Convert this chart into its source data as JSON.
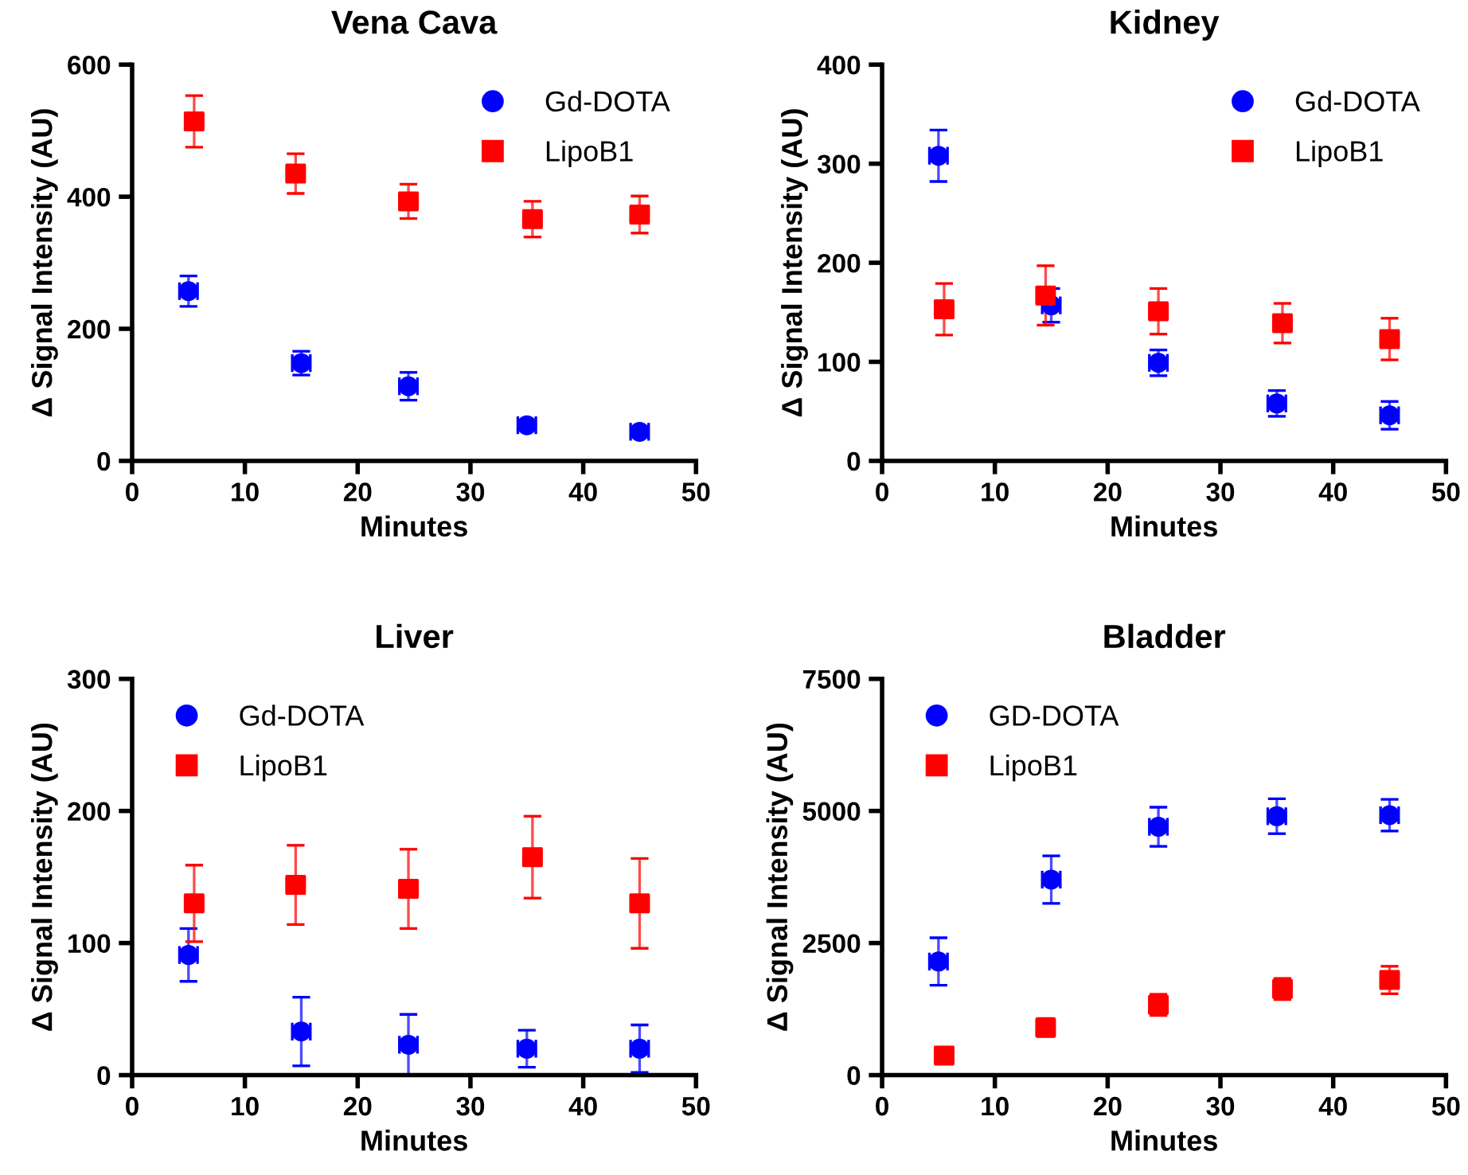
{
  "chart_data": [
    {
      "type": "scatter",
      "title": "Vena Cava",
      "xlabel": "Minutes",
      "ylabel": "Δ Signal Intensity (AU)",
      "xlim": [
        0,
        50
      ],
      "xticks": [
        0,
        10,
        20,
        30,
        40,
        50
      ],
      "ylim": [
        0,
        600
      ],
      "yticks": [
        0,
        200,
        400,
        600
      ],
      "legend": "top right",
      "grid": false,
      "series": [
        {
          "name": "Gd-DOTA",
          "color": "#0000ff",
          "marker": "circle",
          "x": [
            5,
            15,
            24.5,
            35,
            45
          ],
          "values": [
            257,
            148,
            113,
            54,
            44
          ],
          "errors": [
            23,
            18,
            21,
            6,
            5
          ],
          "xerrors": [
            0.8,
            0.8,
            0.8,
            0.8,
            0.8
          ]
        },
        {
          "name": "LipoB1",
          "color": "#ff0000",
          "marker": "square",
          "x": [
            5.5,
            14.5,
            24.5,
            35.5,
            45
          ],
          "values": [
            514,
            435,
            393,
            366,
            373
          ],
          "errors": [
            39,
            30,
            26,
            27,
            28
          ],
          "xerrors": [
            0.8,
            0.8,
            0.8,
            0.8,
            0.8
          ]
        }
      ]
    },
    {
      "type": "scatter",
      "title": "Kidney",
      "xlabel": "Minutes",
      "ylabel": "Δ Signal Intensity (AU)",
      "xlim": [
        0,
        50
      ],
      "xticks": [
        0,
        10,
        20,
        30,
        40,
        50
      ],
      "ylim": [
        0,
        400
      ],
      "yticks": [
        0,
        100,
        200,
        300,
        400
      ],
      "legend": "top right",
      "grid": false,
      "series": [
        {
          "name": "Gd-DOTA",
          "color": "#0000ff",
          "marker": "circle",
          "x": [
            5,
            15,
            24.5,
            35,
            45
          ],
          "values": [
            308,
            157,
            99,
            58,
            46
          ],
          "errors": [
            26,
            17,
            13,
            13,
            14
          ],
          "xerrors": [
            0.8,
            0.8,
            0.8,
            0.8,
            0.8
          ]
        },
        {
          "name": "LipoB1",
          "color": "#ff0000",
          "marker": "square",
          "x": [
            5.5,
            14.5,
            24.5,
            35.5,
            45
          ],
          "values": [
            153,
            167,
            151,
            139,
            123
          ],
          "errors": [
            26,
            30,
            23,
            20,
            21
          ],
          "xerrors": [
            0.8,
            0.8,
            0.8,
            0.8,
            0.8
          ]
        }
      ]
    },
    {
      "type": "scatter",
      "title": "Liver",
      "xlabel": "Minutes",
      "ylabel": "Δ Signal Intensity (AU)",
      "xlim": [
        0,
        50
      ],
      "xticks": [
        0,
        10,
        20,
        30,
        40,
        50
      ],
      "ylim": [
        0,
        300
      ],
      "yticks": [
        0,
        100,
        200,
        300
      ],
      "legend": "top left",
      "grid": false,
      "series": [
        {
          "name": "Gd-DOTA",
          "color": "#0000ff",
          "marker": "circle",
          "x": [
            5,
            15,
            24.5,
            35,
            45
          ],
          "values": [
            91,
            33,
            23,
            20,
            20
          ],
          "errors": [
            20,
            26,
            23,
            14,
            18
          ],
          "xerrors": [
            0.8,
            0.8,
            0.8,
            0.8,
            0.8
          ]
        },
        {
          "name": "LipoB1",
          "color": "#ff0000",
          "marker": "square",
          "x": [
            5.5,
            14.5,
            24.5,
            35.5,
            45
          ],
          "values": [
            130,
            144,
            141,
            165,
            130
          ],
          "errors": [
            29,
            30,
            30,
            31,
            34
          ],
          "xerrors": [
            0.8,
            0.8,
            0.8,
            0.8,
            0.8
          ]
        }
      ]
    },
    {
      "type": "scatter",
      "title": "Bladder",
      "xlabel": "Minutes",
      "ylabel": "Δ Signal Intensity (AU)",
      "xlim": [
        0,
        50
      ],
      "xticks": [
        0,
        10,
        20,
        30,
        40,
        50
      ],
      "ylim": [
        0,
        7500
      ],
      "yticks": [
        0,
        2500,
        5000,
        7500
      ],
      "legend": "top left",
      "grid": false,
      "series": [
        {
          "name": "GD-DOTA",
          "color": "#0000ff",
          "marker": "circle",
          "x": [
            5,
            15,
            24.5,
            35,
            45
          ],
          "values": [
            2150,
            3700,
            4700,
            4900,
            4920
          ],
          "errors": [
            450,
            450,
            370,
            330,
            300
          ],
          "xerrors": [
            0.8,
            0.8,
            0.8,
            0.8,
            0.8
          ]
        },
        {
          "name": "LipoB1",
          "color": "#ff0000",
          "marker": "square",
          "x": [
            5.5,
            14.5,
            24.5,
            35.5,
            45
          ],
          "values": [
            370,
            900,
            1330,
            1630,
            1800
          ],
          "errors": [
            60,
            170,
            200,
            200,
            260
          ],
          "xerrors": [
            0.8,
            0.8,
            0.8,
            0.8,
            0.8
          ]
        }
      ]
    }
  ]
}
